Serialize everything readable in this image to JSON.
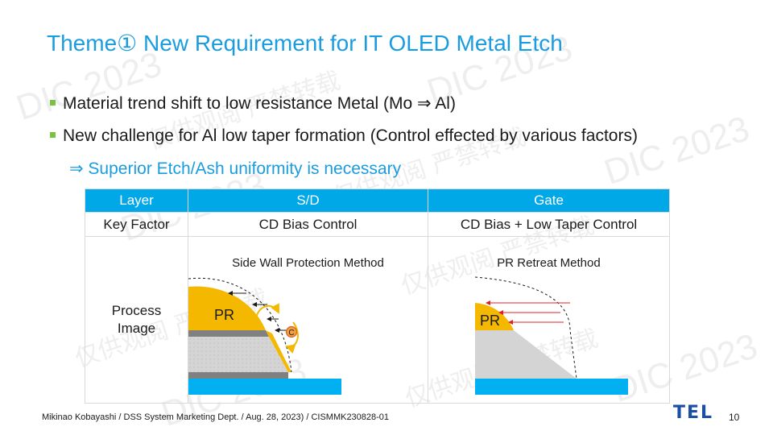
{
  "slide": {
    "title": "Theme① New Requirement for IT OLED Metal Etch",
    "bullets": [
      "Material trend shift to low resistance Metal (Mo ⇒ Al)",
      "New challenge for Al low taper formation (Control effected by various factors)"
    ],
    "conclusion": "⇒ Superior Etch/Ash uniformity is necessary"
  },
  "table": {
    "headers": [
      "Layer",
      "S/D",
      "Gate"
    ],
    "key_factor_row": [
      "Key Factor",
      "CD Bias Control",
      "CD Bias + Low Taper Control"
    ],
    "process_row_label": "Process Image",
    "sd_method": "Side Wall Protection Method",
    "gate_method": "PR Retreat Method",
    "pr_label": "PR",
    "c_marker": "C"
  },
  "footer": {
    "credit": "Mikinao Kobayashi / DSS System Marketing Dept. / Aug. 28, 2023) / CISMMK230828-01",
    "logo": "TEL",
    "page": "10"
  },
  "watermarks": {
    "en": "DIC 2023",
    "cn": "仅供观阅 严禁转载"
  },
  "colors": {
    "title_blue": "#1a9ce0",
    "header_blue": "#00a8e8",
    "bullet_green": "#7cc242",
    "pr_yellow": "#f5b800",
    "substrate_blue": "#00b0f0",
    "arrow_red": "#e02020",
    "logo_blue": "#1b4ea5"
  }
}
